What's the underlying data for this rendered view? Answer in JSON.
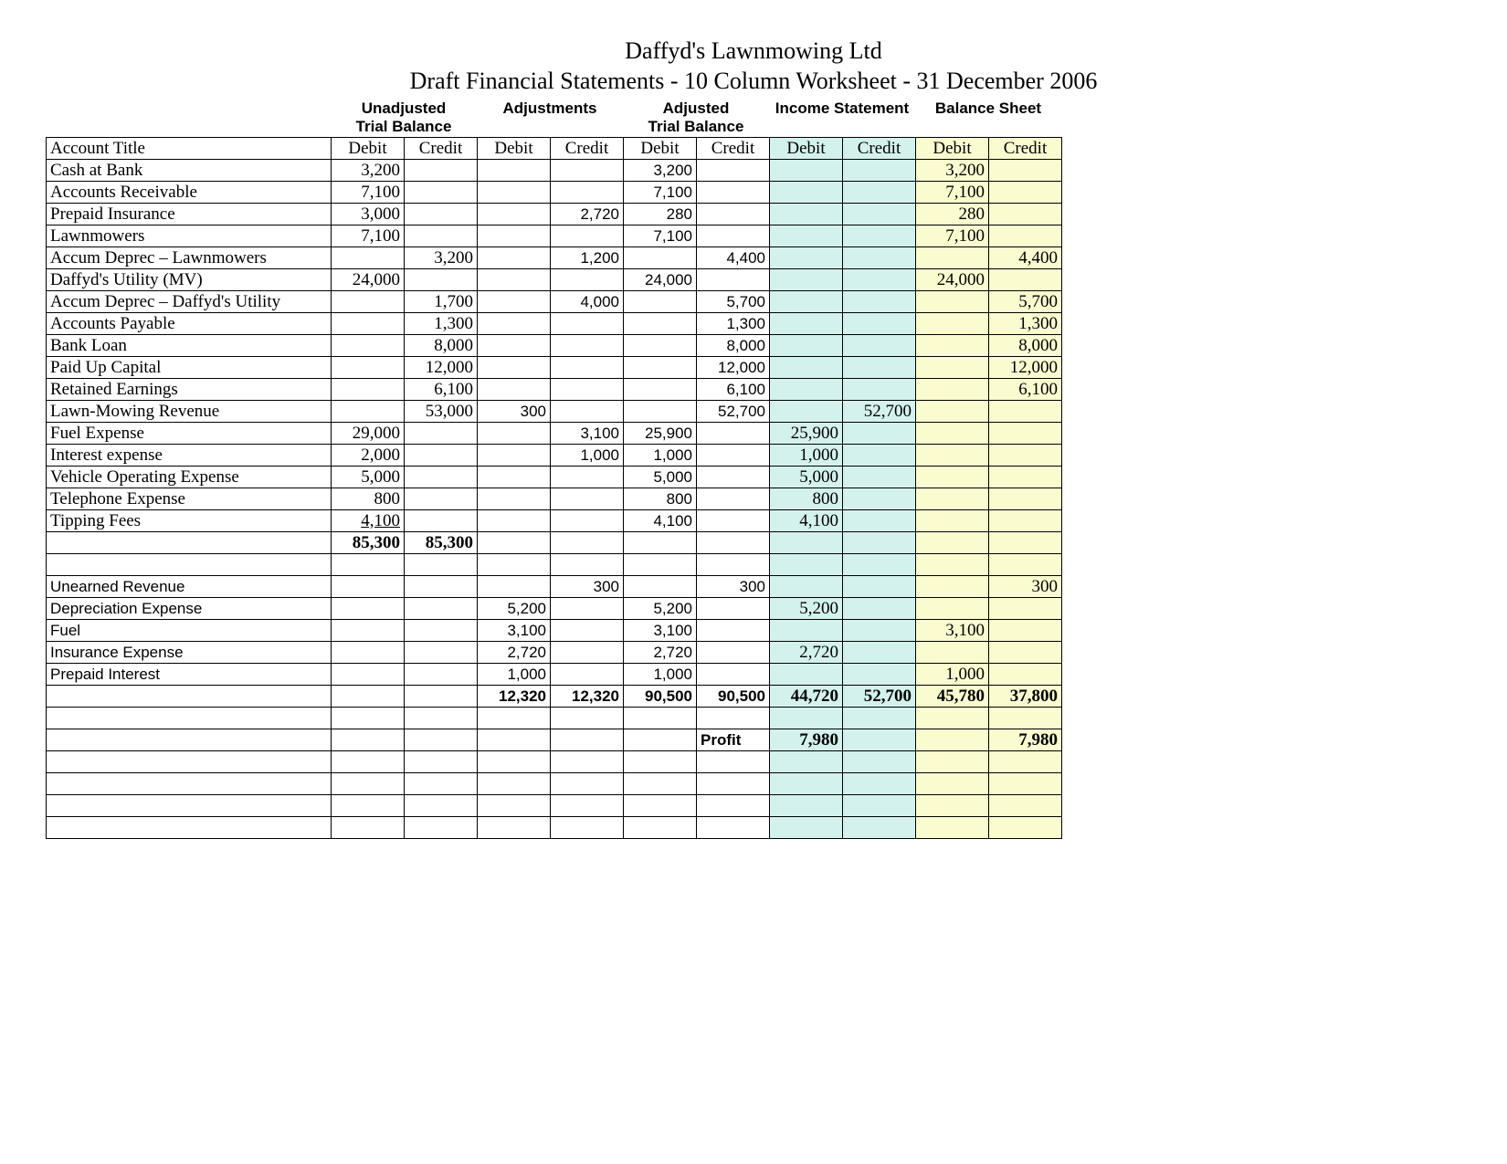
{
  "title_line1": "Daffyd's Lawnmowing Ltd",
  "title_line2": "Draft Financial Statements - 10 Column Worksheet - 31 December 2006",
  "section_headers": {
    "unadjusted_tb_line1": "Unadjusted",
    "unadjusted_tb_line2": "Trial Balance",
    "adjustments": "Adjustments",
    "adjusted_tb_line1": "Adjusted",
    "adjusted_tb_line2": "Trial Balance",
    "income_statement": "Income Statement",
    "balance_sheet": "Balance Sheet"
  },
  "column_headers": {
    "account_title": "Account Title",
    "debit": "Debit",
    "credit": "Credit"
  },
  "colors": {
    "white": "#ffffff",
    "cyan": "#d4f2ed",
    "yellow": "#fafcd0",
    "border": "#000000"
  },
  "rows": [
    {
      "title": "Cash at Bank",
      "font": "times",
      "cells": [
        "3,200",
        "",
        "",
        "",
        "3,200",
        "",
        "",
        "",
        "3,200",
        ""
      ],
      "cell_font": [
        "times",
        "",
        "",
        "",
        "arial",
        "",
        "",
        "",
        "times",
        ""
      ]
    },
    {
      "title": "Accounts Receivable",
      "font": "times",
      "cells": [
        "7,100",
        "",
        "",
        "",
        "7,100",
        "",
        "",
        "",
        "7,100",
        ""
      ],
      "cell_font": [
        "times",
        "",
        "",
        "",
        "arial",
        "",
        "",
        "",
        "times",
        ""
      ]
    },
    {
      "title": "Prepaid Insurance",
      "font": "times",
      "cells": [
        "3,000",
        "",
        "",
        "2,720",
        "280",
        "",
        "",
        "",
        "280",
        ""
      ],
      "cell_font": [
        "times",
        "",
        "",
        "arial",
        "arial",
        "",
        "",
        "",
        "times",
        ""
      ]
    },
    {
      "title": "Lawnmowers",
      "font": "times",
      "cells": [
        "7,100",
        "",
        "",
        "",
        "7,100",
        "",
        "",
        "",
        "7,100",
        ""
      ],
      "cell_font": [
        "times",
        "",
        "",
        "",
        "arial",
        "",
        "",
        "",
        "times",
        ""
      ]
    },
    {
      "title": "Accum Deprec – Lawnmowers",
      "font": "times",
      "cells": [
        "",
        "3,200",
        "",
        "1,200",
        "",
        "4,400",
        "",
        "",
        "",
        "4,400"
      ],
      "cell_font": [
        "",
        "times",
        "",
        "arial",
        "",
        "arial",
        "",
        "",
        "",
        "times"
      ]
    },
    {
      "title": "Daffyd's Utility (MV)",
      "font": "times",
      "cells": [
        "24,000",
        "",
        "",
        "",
        "24,000",
        "",
        "",
        "",
        "24,000",
        ""
      ],
      "cell_font": [
        "times",
        "",
        "",
        "",
        "arial",
        "",
        "",
        "",
        "times",
        ""
      ]
    },
    {
      "title": "Accum Deprec – Daffyd's Utility",
      "font": "times",
      "cells": [
        "",
        "1,700",
        "",
        "4,000",
        "",
        "5,700",
        "",
        "",
        "",
        "5,700"
      ],
      "cell_font": [
        "",
        "times",
        "",
        "arial",
        "",
        "arial",
        "",
        "",
        "",
        "times"
      ]
    },
    {
      "title": "Accounts Payable",
      "font": "times",
      "cells": [
        "",
        "1,300",
        "",
        "",
        "",
        "1,300",
        "",
        "",
        "",
        "1,300"
      ],
      "cell_font": [
        "",
        "times",
        "",
        "",
        "",
        "arial",
        "",
        "",
        "",
        "times"
      ]
    },
    {
      "title": "Bank Loan",
      "font": "times",
      "cells": [
        "",
        "8,000",
        "",
        "",
        "",
        "8,000",
        "",
        "",
        "",
        "8,000"
      ],
      "cell_font": [
        "",
        "times",
        "",
        "",
        "",
        "arial",
        "",
        "",
        "",
        "times"
      ]
    },
    {
      "title": "Paid Up Capital",
      "font": "times",
      "cells": [
        "",
        "12,000",
        "",
        "",
        "",
        "12,000",
        "",
        "",
        "",
        "12,000"
      ],
      "cell_font": [
        "",
        "times",
        "",
        "",
        "",
        "arial",
        "",
        "",
        "",
        "times"
      ]
    },
    {
      "title": "Retained Earnings",
      "font": "times",
      "cells": [
        "",
        "6,100",
        "",
        "",
        "",
        "6,100",
        "",
        "",
        "",
        "6,100"
      ],
      "cell_font": [
        "",
        "times",
        "",
        "",
        "",
        "arial",
        "",
        "",
        "",
        "times"
      ]
    },
    {
      "title": "Lawn-Mowing Revenue",
      "font": "times",
      "cells": [
        "",
        "53,000",
        "300",
        "",
        "",
        "52,700",
        "",
        "52,700",
        "",
        ""
      ],
      "cell_font": [
        "",
        "times",
        "arial",
        "",
        "",
        "arial",
        "",
        "times",
        "",
        ""
      ]
    },
    {
      "title": "Fuel Expense",
      "font": "times",
      "cells": [
        "29,000",
        "",
        "",
        "3,100",
        "25,900",
        "",
        "25,900",
        "",
        "",
        ""
      ],
      "cell_font": [
        "times",
        "",
        "",
        "arial",
        "arial",
        "",
        "times",
        "",
        "",
        ""
      ]
    },
    {
      "title": "Interest expense",
      "font": "times",
      "cells": [
        "2,000",
        "",
        "",
        "1,000",
        "1,000",
        "",
        "1,000",
        "",
        "",
        ""
      ],
      "cell_font": [
        "times",
        "",
        "",
        "arial",
        "arial",
        "",
        "times",
        "",
        "",
        ""
      ]
    },
    {
      "title": "Vehicle Operating Expense",
      "font": "times",
      "cells": [
        "5,000",
        "",
        "",
        "",
        "5,000",
        "",
        "5,000",
        "",
        "",
        ""
      ],
      "cell_font": [
        "times",
        "",
        "",
        "",
        "arial",
        "",
        "times",
        "",
        "",
        ""
      ]
    },
    {
      "title": "Telephone Expense",
      "font": "times",
      "cells": [
        "800",
        "",
        "",
        "",
        "800",
        "",
        "800",
        "",
        "",
        ""
      ],
      "cell_font": [
        "times",
        "",
        "",
        "",
        "arial",
        "",
        "times",
        "",
        "",
        ""
      ]
    },
    {
      "title": "Tipping Fees",
      "font": "times",
      "cells": [
        "4,100",
        "",
        "",
        "",
        "4,100",
        "",
        "4,100",
        "",
        "",
        ""
      ],
      "cell_font": [
        "times",
        "",
        "",
        "",
        "arial",
        "",
        "times",
        "",
        "",
        ""
      ],
      "underline": [
        true,
        false,
        false,
        false,
        false,
        false,
        false,
        false,
        false,
        false
      ]
    },
    {
      "title": "",
      "font": "times",
      "cells": [
        "85,300",
        "85,300",
        "",
        "",
        "",
        "",
        "",
        "",
        "",
        ""
      ],
      "cell_font": [
        "times",
        "times",
        "",
        "",
        "",
        "",
        "",
        "",
        "",
        ""
      ],
      "bold": [
        true,
        true,
        false,
        false,
        false,
        false,
        false,
        false,
        false,
        false
      ]
    },
    {
      "title": "",
      "font": "times",
      "cells": [
        "",
        "",
        "",
        "",
        "",
        "",
        "",
        "",
        "",
        ""
      ]
    },
    {
      "title": "Unearned Revenue",
      "font": "arial",
      "cells": [
        "",
        "",
        "",
        "300",
        "",
        "300",
        "",
        "",
        "",
        "300"
      ],
      "cell_font": [
        "",
        "",
        "",
        "arial",
        "",
        "arial",
        "",
        "",
        "",
        "times"
      ]
    },
    {
      "title": "Depreciation Expense",
      "font": "arial",
      "cells": [
        "",
        "",
        "5,200",
        "",
        "5,200",
        "",
        "5,200",
        "",
        "",
        ""
      ],
      "cell_font": [
        "",
        "",
        "arial",
        "",
        "arial",
        "",
        "times",
        "",
        "",
        ""
      ]
    },
    {
      "title": "Fuel",
      "font": "arial",
      "cells": [
        "",
        "",
        "3,100",
        "",
        "3,100",
        "",
        "",
        "",
        "3,100",
        ""
      ],
      "cell_font": [
        "",
        "",
        "arial",
        "",
        "arial",
        "",
        "",
        "",
        "times",
        ""
      ]
    },
    {
      "title": "Insurance Expense",
      "font": "arial",
      "cells": [
        "",
        "",
        "2,720",
        "",
        "2,720",
        "",
        "2,720",
        "",
        "",
        ""
      ],
      "cell_font": [
        "",
        "",
        "arial",
        "",
        "arial",
        "",
        "times",
        "",
        "",
        ""
      ]
    },
    {
      "title": "Prepaid Interest",
      "font": "arial",
      "cells": [
        "",
        "",
        "1,000",
        "",
        "1,000",
        "",
        "",
        "",
        "1,000",
        ""
      ],
      "cell_font": [
        "",
        "",
        "arial",
        "",
        "arial",
        "",
        "",
        "",
        "times",
        ""
      ]
    },
    {
      "title": "",
      "font": "times",
      "cells": [
        "",
        "",
        "12,320",
        "12,320",
        "90,500",
        "90,500",
        "44,720",
        "52,700",
        "45,780",
        "37,800"
      ],
      "cell_font": [
        "",
        "",
        "arial",
        "arial",
        "arial",
        "arial",
        "times",
        "times",
        "times",
        "times"
      ],
      "bold": [
        false,
        false,
        true,
        true,
        true,
        true,
        true,
        true,
        true,
        true
      ]
    },
    {
      "title": "",
      "font": "times",
      "cells": [
        "",
        "",
        "",
        "",
        "",
        "",
        "",
        "",
        "",
        ""
      ]
    },
    {
      "title": "",
      "font": "times",
      "cells": [
        "",
        "",
        "",
        "",
        "",
        "Profit",
        "7,980",
        "",
        "",
        "7,980"
      ],
      "cell_font": [
        "",
        "",
        "",
        "",
        "",
        "arial",
        "times",
        "",
        "",
        "times"
      ],
      "bold": [
        false,
        false,
        false,
        false,
        false,
        true,
        true,
        false,
        false,
        true
      ],
      "align": [
        "",
        "",
        "",
        "",
        "",
        "left",
        "",
        "",
        "",
        ""
      ]
    },
    {
      "title": "",
      "font": "times",
      "cells": [
        "",
        "",
        "",
        "",
        "",
        "",
        "",
        "",
        "",
        ""
      ]
    },
    {
      "title": "",
      "font": "times",
      "cells": [
        "",
        "",
        "",
        "",
        "",
        "",
        "",
        "",
        "",
        ""
      ]
    },
    {
      "title": "",
      "font": "times",
      "cells": [
        "",
        "",
        "",
        "",
        "",
        "",
        "",
        "",
        "",
        ""
      ]
    },
    {
      "title": "",
      "font": "times",
      "cells": [
        "",
        "",
        "",
        "",
        "",
        "",
        "",
        "",
        "",
        ""
      ]
    }
  ],
  "column_bg": [
    "white",
    "white",
    "white",
    "white",
    "white",
    "white",
    "cyan",
    "cyan",
    "yellow",
    "yellow"
  ]
}
